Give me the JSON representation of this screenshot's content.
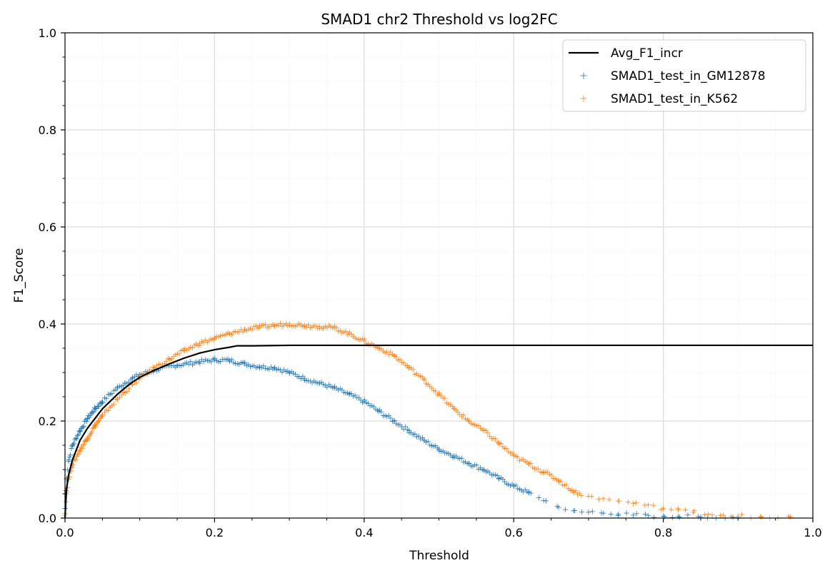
{
  "chart_data": {
    "type": "scatter",
    "title": "SMAD1 chr2 Threshold vs log2FC",
    "xlabel": "Threshold",
    "ylabel": "F1_Score",
    "xlim": [
      0.0,
      1.0
    ],
    "ylim": [
      0.0,
      1.0
    ],
    "xticks": [
      "0.0",
      "0.2",
      "0.4",
      "0.6",
      "0.8",
      "1.0"
    ],
    "yticks": [
      "0.0",
      "0.2",
      "0.4",
      "0.6",
      "0.8",
      "1.0"
    ],
    "grid": true,
    "minor_grid": true,
    "legend_position": "top-right",
    "legend": [
      "Avg_F1_incr",
      "SMAD1_test_in_GM12878",
      "SMAD1_test_in_K562"
    ],
    "series": [
      {
        "name": "Avg_F1_incr",
        "kind": "line",
        "color": "#000000",
        "points": [
          [
            0.0,
            0.0
          ],
          [
            0.002,
            0.06
          ],
          [
            0.005,
            0.09
          ],
          [
            0.01,
            0.12
          ],
          [
            0.02,
            0.16
          ],
          [
            0.03,
            0.185
          ],
          [
            0.04,
            0.205
          ],
          [
            0.05,
            0.225
          ],
          [
            0.06,
            0.24
          ],
          [
            0.07,
            0.255
          ],
          [
            0.08,
            0.268
          ],
          [
            0.09,
            0.28
          ],
          [
            0.1,
            0.29
          ],
          [
            0.12,
            0.305
          ],
          [
            0.14,
            0.318
          ],
          [
            0.16,
            0.33
          ],
          [
            0.18,
            0.34
          ],
          [
            0.2,
            0.347
          ],
          [
            0.22,
            0.352
          ],
          [
            0.23,
            0.355
          ],
          [
            0.25,
            0.355
          ],
          [
            0.3,
            0.356
          ],
          [
            0.4,
            0.356
          ],
          [
            1.0,
            0.356
          ]
        ]
      },
      {
        "name": "SMAD1_test_in_GM12878",
        "kind": "scatter",
        "marker": "+",
        "color": "#1f77b4",
        "points": [
          [
            0.0,
            0.02
          ],
          [
            0.002,
            0.08
          ],
          [
            0.005,
            0.12
          ],
          [
            0.01,
            0.15
          ],
          [
            0.02,
            0.18
          ],
          [
            0.03,
            0.205
          ],
          [
            0.04,
            0.225
          ],
          [
            0.05,
            0.24
          ],
          [
            0.06,
            0.255
          ],
          [
            0.07,
            0.268
          ],
          [
            0.08,
            0.278
          ],
          [
            0.09,
            0.288
          ],
          [
            0.1,
            0.295
          ],
          [
            0.12,
            0.305
          ],
          [
            0.15,
            0.315
          ],
          [
            0.18,
            0.322
          ],
          [
            0.2,
            0.326
          ],
          [
            0.22,
            0.325
          ],
          [
            0.24,
            0.318
          ],
          [
            0.26,
            0.312
          ],
          [
            0.28,
            0.31
          ],
          [
            0.3,
            0.3
          ],
          [
            0.32,
            0.288
          ],
          [
            0.34,
            0.278
          ],
          [
            0.36,
            0.268
          ],
          [
            0.38,
            0.255
          ],
          [
            0.4,
            0.24
          ],
          [
            0.42,
            0.22
          ],
          [
            0.44,
            0.2
          ],
          [
            0.46,
            0.18
          ],
          [
            0.48,
            0.16
          ],
          [
            0.5,
            0.142
          ],
          [
            0.52,
            0.128
          ],
          [
            0.54,
            0.113
          ],
          [
            0.56,
            0.1
          ],
          [
            0.58,
            0.082
          ],
          [
            0.6,
            0.066
          ],
          [
            0.62,
            0.052
          ],
          [
            0.64,
            0.036
          ],
          [
            0.66,
            0.022
          ],
          [
            0.68,
            0.015
          ],
          [
            0.7,
            0.012
          ],
          [
            0.72,
            0.01
          ],
          [
            0.74,
            0.008
          ],
          [
            0.76,
            0.006
          ],
          [
            0.78,
            0.005
          ],
          [
            0.8,
            0.004
          ],
          [
            0.82,
            0.003
          ],
          [
            0.85,
            0.002
          ],
          [
            0.9,
            0.001
          ]
        ]
      },
      {
        "name": "SMAD1_test_in_K562",
        "kind": "scatter",
        "marker": "+",
        "color": "#ff7f0e",
        "points": [
          [
            0.0,
            0.01
          ],
          [
            0.002,
            0.05
          ],
          [
            0.005,
            0.08
          ],
          [
            0.01,
            0.11
          ],
          [
            0.02,
            0.14
          ],
          [
            0.03,
            0.165
          ],
          [
            0.04,
            0.19
          ],
          [
            0.05,
            0.21
          ],
          [
            0.06,
            0.228
          ],
          [
            0.07,
            0.245
          ],
          [
            0.08,
            0.26
          ],
          [
            0.09,
            0.275
          ],
          [
            0.1,
            0.288
          ],
          [
            0.12,
            0.31
          ],
          [
            0.14,
            0.328
          ],
          [
            0.16,
            0.345
          ],
          [
            0.18,
            0.36
          ],
          [
            0.2,
            0.37
          ],
          [
            0.22,
            0.38
          ],
          [
            0.24,
            0.388
          ],
          [
            0.26,
            0.393
          ],
          [
            0.28,
            0.397
          ],
          [
            0.3,
            0.4
          ],
          [
            0.32,
            0.397
          ],
          [
            0.34,
            0.395
          ],
          [
            0.36,
            0.392
          ],
          [
            0.38,
            0.38
          ],
          [
            0.4,
            0.365
          ],
          [
            0.42,
            0.35
          ],
          [
            0.44,
            0.335
          ],
          [
            0.46,
            0.31
          ],
          [
            0.48,
            0.285
          ],
          [
            0.5,
            0.255
          ],
          [
            0.52,
            0.225
          ],
          [
            0.54,
            0.2
          ],
          [
            0.56,
            0.18
          ],
          [
            0.58,
            0.155
          ],
          [
            0.6,
            0.128
          ],
          [
            0.62,
            0.112
          ],
          [
            0.64,
            0.095
          ],
          [
            0.66,
            0.078
          ],
          [
            0.68,
            0.055
          ],
          [
            0.7,
            0.045
          ],
          [
            0.72,
            0.04
          ],
          [
            0.74,
            0.035
          ],
          [
            0.76,
            0.03
          ],
          [
            0.78,
            0.027
          ],
          [
            0.8,
            0.02
          ],
          [
            0.82,
            0.017
          ],
          [
            0.84,
            0.012
          ],
          [
            0.86,
            0.008
          ],
          [
            0.88,
            0.006
          ],
          [
            0.9,
            0.004
          ],
          [
            0.93,
            0.003
          ],
          [
            0.97,
            0.002
          ]
        ]
      }
    ]
  }
}
